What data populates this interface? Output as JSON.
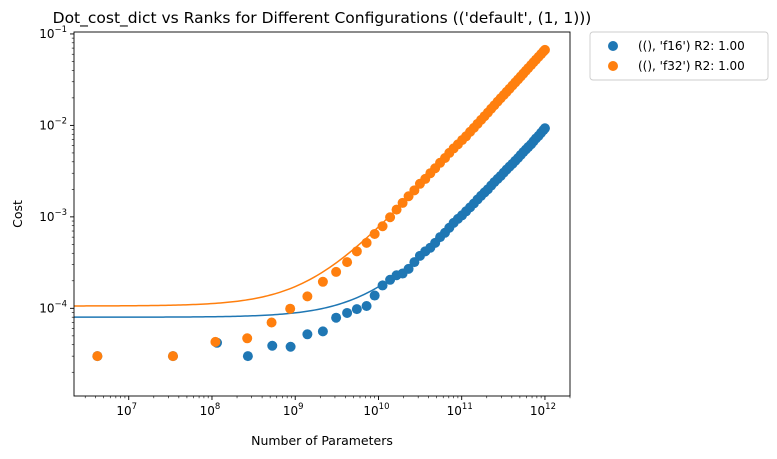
{
  "chart_data": {
    "type": "scatter",
    "title": "Dot_cost_dict vs Ranks for Different Configurations (('default', (1, 1)))",
    "xlabel": "Number of Parameters",
    "ylabel": "Cost",
    "xscale": "log",
    "yscale": "log",
    "xlim": [
      2200000.0,
      2000000000000.0
    ],
    "ylim": [
      1.1e-05,
      0.105
    ],
    "grid": false,
    "legend_position": "outside-top-right",
    "x_ticks": [
      {
        "value": 10000000.0,
        "base": "10",
        "exp": "7"
      },
      {
        "value": 100000000.0,
        "base": "10",
        "exp": "8"
      },
      {
        "value": 1000000000.0,
        "base": "10",
        "exp": "9"
      },
      {
        "value": 10000000000.0,
        "base": "10",
        "exp": "10"
      },
      {
        "value": 100000000000.0,
        "base": "10",
        "exp": "11"
      },
      {
        "value": 1000000000000.0,
        "base": "10",
        "exp": "12"
      }
    ],
    "y_ticks": [
      {
        "value": 0.0001,
        "base": "10",
        "exp": "−4"
      },
      {
        "value": 0.001,
        "base": "10",
        "exp": "−3"
      },
      {
        "value": 0.01,
        "base": "10",
        "exp": "−2"
      },
      {
        "value": 0.1,
        "base": "10",
        "exp": "−1"
      }
    ],
    "series": [
      {
        "name": "((), 'f16') R2: 1.00",
        "color": "#1f77b4",
        "fit": {
          "a": 8e-05,
          "b": 9.2e-15
        },
        "points": [
          [
            4200000.0,
            3e-05
          ],
          [
            34000000.0,
            3e-05
          ],
          [
            115000000.0,
            4.2e-05
          ],
          [
            270000000.0,
            3e-05
          ],
          [
            530000000.0,
            3.9e-05
          ],
          [
            880000000.0,
            3.8e-05
          ],
          [
            1400000000.0,
            5.2e-05
          ],
          [
            2150000000.0,
            5.6e-05
          ],
          [
            3100000000.0,
            7.9e-05
          ],
          [
            4200000000.0,
            8.9e-05
          ],
          [
            5500000000.0,
            9.8e-05
          ],
          [
            7200000000.0,
            0.000106
          ],
          [
            9000000000.0,
            0.000138
          ],
          [
            11200000000.0,
            0.000178
          ],
          [
            13800000000.0,
            0.000205
          ],
          [
            16500000000.0,
            0.00023
          ],
          [
            19500000000.0,
            0.00024
          ],
          [
            23000000000.0,
            0.00027
          ],
          [
            27000000000.0,
            0.00032
          ],
          [
            31500000000.0,
            0.000375
          ],
          [
            36500000000.0,
            0.00042
          ],
          [
            42000000000.0,
            0.00046
          ],
          [
            48000000000.0,
            0.00052
          ],
          [
            55000000000.0,
            0.0006
          ],
          [
            63000000000.0,
            0.00067
          ],
          [
            71000000000.0,
            0.00076
          ],
          [
            80000000000.0,
            0.00086
          ],
          [
            90000000000.0,
            0.00095
          ],
          [
            101000000000.0,
            0.00104
          ],
          [
            113000000000.0,
            0.00115
          ],
          [
            126000000000.0,
            0.00127
          ],
          [
            140000000000.0,
            0.0014
          ],
          [
            155000000000.0,
            0.00155
          ],
          [
            171000000000.0,
            0.0017
          ],
          [
            188000000000.0,
            0.00185
          ],
          [
            206000000000.0,
            0.002
          ],
          [
            226000000000.0,
            0.0022
          ],
          [
            247000000000.0,
            0.0024
          ],
          [
            270000000000.0,
            0.0026
          ],
          [
            294000000000.0,
            0.0028
          ],
          [
            320000000000.0,
            0.00305
          ],
          [
            347000000000.0,
            0.0033
          ],
          [
            376000000000.0,
            0.00355
          ],
          [
            407000000000.0,
            0.0038
          ],
          [
            440000000000.0,
            0.0041
          ],
          [
            475000000000.0,
            0.0044
          ],
          [
            512000000000.0,
            0.00475
          ],
          [
            550000000000.0,
            0.0051
          ],
          [
            590000000000.0,
            0.00545
          ],
          [
            630000000000.0,
            0.0058
          ],
          [
            680000000000.0,
            0.0062
          ],
          [
            730000000000.0,
            0.0067
          ],
          [
            780000000000.0,
            0.0072
          ],
          [
            840000000000.0,
            0.0077
          ],
          [
            900000000000.0,
            0.0083
          ],
          [
            960000000000.0,
            0.0089
          ],
          [
            1000000000000.0,
            0.0093
          ]
        ]
      },
      {
        "name": "((), 'f32') R2: 1.00",
        "color": "#ff7f0e",
        "fit": {
          "a": 0.000106,
          "b": 6.7e-14
        },
        "points": [
          [
            4200000.0,
            3e-05
          ],
          [
            34000000.0,
            3e-05
          ],
          [
            110000000.0,
            4.3e-05
          ],
          [
            265000000.0,
            4.7e-05
          ],
          [
            520000000.0,
            7e-05
          ],
          [
            870000000.0,
            9.9e-05
          ],
          [
            1400000000.0,
            0.000135
          ],
          [
            2150000000.0,
            0.000195
          ],
          [
            3100000000.0,
            0.00025
          ],
          [
            4200000000.0,
            0.00032
          ],
          [
            5500000000.0,
            0.00042
          ],
          [
            7200000000.0,
            0.00052
          ],
          [
            9000000000.0,
            0.00065
          ],
          [
            11200000000.0,
            0.00079
          ],
          [
            13800000000.0,
            0.00099
          ],
          [
            16500000000.0,
            0.0012
          ],
          [
            19500000000.0,
            0.00142
          ],
          [
            23000000000.0,
            0.00168
          ],
          [
            27000000000.0,
            0.00195
          ],
          [
            31500000000.0,
            0.0023
          ],
          [
            36500000000.0,
            0.0026
          ],
          [
            42000000000.0,
            0.003
          ],
          [
            48000000000.0,
            0.0034
          ],
          [
            55000000000.0,
            0.0039
          ],
          [
            63000000000.0,
            0.0044
          ],
          [
            71000000000.0,
            0.005
          ],
          [
            80000000000.0,
            0.0056
          ],
          [
            90000000000.0,
            0.0062
          ],
          [
            101000000000.0,
            0.0069
          ],
          [
            113000000000.0,
            0.0076
          ],
          [
            126000000000.0,
            0.0085
          ],
          [
            140000000000.0,
            0.0094
          ],
          [
            155000000000.0,
            0.0104
          ],
          [
            171000000000.0,
            0.0115
          ],
          [
            188000000000.0,
            0.0126
          ],
          [
            206000000000.0,
            0.0138
          ],
          [
            226000000000.0,
            0.0152
          ],
          [
            247000000000.0,
            0.0166
          ],
          [
            270000000000.0,
            0.0182
          ],
          [
            294000000000.0,
            0.0198
          ],
          [
            320000000000.0,
            0.0215
          ],
          [
            347000000000.0,
            0.0233
          ],
          [
            376000000000.0,
            0.0252
          ],
          [
            407000000000.0,
            0.0273
          ],
          [
            440000000000.0,
            0.0295
          ],
          [
            475000000000.0,
            0.0318
          ],
          [
            512000000000.0,
            0.0343
          ],
          [
            550000000000.0,
            0.0369
          ],
          [
            590000000000.0,
            0.0396
          ],
          [
            630000000000.0,
            0.0423
          ],
          [
            680000000000.0,
            0.0456
          ],
          [
            730000000000.0,
            0.049
          ],
          [
            780000000000.0,
            0.0523
          ],
          [
            840000000000.0,
            0.0563
          ],
          [
            900000000000.0,
            0.0603
          ],
          [
            960000000000.0,
            0.0644
          ],
          [
            1000000000000.0,
            0.067
          ]
        ]
      }
    ]
  }
}
